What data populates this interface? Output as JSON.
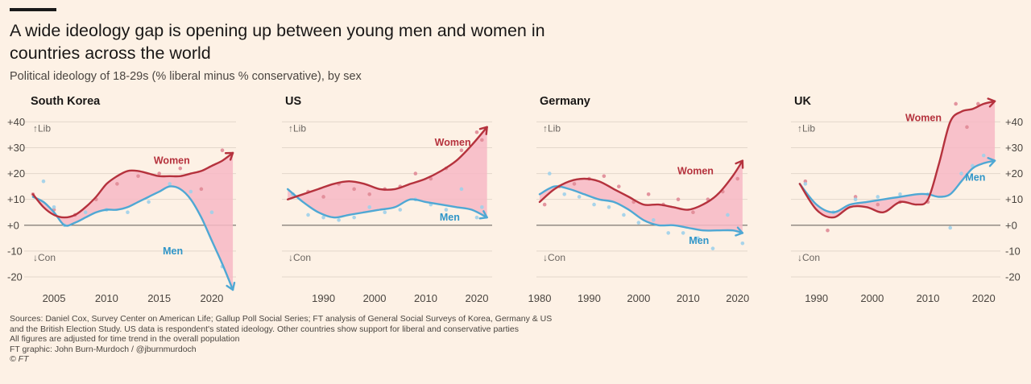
{
  "header": {
    "title": "A wide ideology gap is opening up between young men and women in countries across the world",
    "subtitle": "Political ideology of 18-29s (% liberal minus % conservative), by sex"
  },
  "footer": {
    "sources": "Sources: Daniel Cox, Survey Center on American Life; Gallup Poll Social Series; FT analysis of General Social Surveys of Korea, Germany & US",
    "sources2": "and the British Election Study. US data is respondent's stated ideology. Other countries show support for liberal and conservative parties",
    "note": "All figures are adjusted for time trend in the overall population",
    "credit": "FT graphic: John Burn-Murdoch / @jburnmurdoch",
    "copyright": "© FT"
  },
  "labels": {
    "lib": "↑Lib",
    "con": "↓Con"
  },
  "colors": {
    "women": "#b5323d",
    "men": "#4fa8d4",
    "gap_fill": "#f7b8c6",
    "grid": "#e3d7cb",
    "zero": "#6f6a65",
    "text": "#4a4540"
  },
  "chart_data": [
    {
      "type": "line",
      "title": "South Korea",
      "ylim": [
        -25,
        42
      ],
      "y_ticks": [
        40,
        30,
        20,
        10,
        0,
        -10,
        -20
      ],
      "y_tick_labels": [
        "+40",
        "+30",
        "+20",
        "+10",
        "+0",
        "-10",
        "-20"
      ],
      "y_axis_side": "left",
      "xlim": [
        2002.7,
        2022.3
      ],
      "x_ticks": [
        2005,
        2010,
        2015,
        2020
      ],
      "x_tick_labels": [
        "2005",
        "2010",
        "2015",
        "2020"
      ],
      "series": [
        {
          "name": "Women",
          "x": [
            2003,
            2004,
            2005,
            2006,
            2007,
            2008,
            2009,
            2010,
            2011,
            2012,
            2013,
            2014,
            2015,
            2016,
            2017,
            2018,
            2019,
            2020,
            2021,
            2022
          ],
          "values": [
            12,
            7,
            4,
            3,
            4,
            7,
            11,
            16,
            19,
            21,
            21,
            20,
            19,
            19,
            19,
            20,
            21,
            23,
            25,
            28
          ]
        },
        {
          "name": "Men",
          "x": [
            2003,
            2004,
            2005,
            2006,
            2007,
            2008,
            2009,
            2010,
            2011,
            2012,
            2013,
            2014,
            2015,
            2016,
            2017,
            2018,
            2019,
            2020,
            2021,
            2022
          ],
          "values": [
            11,
            9,
            5,
            0,
            1,
            3,
            5,
            6,
            6,
            7,
            9,
            11,
            13,
            15,
            14,
            10,
            3,
            -6,
            -15,
            -25
          ]
        }
      ],
      "points": {
        "Women": [
          [
            2003,
            12
          ],
          [
            2005,
            6
          ],
          [
            2007,
            4
          ],
          [
            2009,
            10
          ],
          [
            2011,
            16
          ],
          [
            2013,
            19
          ],
          [
            2015,
            20
          ],
          [
            2017,
            22
          ],
          [
            2019,
            14
          ],
          [
            2021,
            29
          ]
        ],
        "Men": [
          [
            2004,
            17
          ],
          [
            2005,
            7
          ],
          [
            2006,
            0
          ],
          [
            2008,
            5
          ],
          [
            2010,
            6
          ],
          [
            2012,
            5
          ],
          [
            2014,
            9
          ],
          [
            2016,
            16
          ],
          [
            2018,
            13
          ],
          [
            2020,
            5
          ],
          [
            2021,
            -16
          ]
        ]
      },
      "series_labels": {
        "Women": [
          2016.2,
          25
        ],
        "Men": [
          2016.3,
          -10
        ]
      }
    },
    {
      "type": "line",
      "title": "US",
      "ylim": [
        -25,
        42
      ],
      "y_ticks": [
        40,
        30,
        20,
        10,
        0,
        -10,
        -20
      ],
      "y_tick_labels": [],
      "y_axis_side": "none",
      "xlim": [
        1982.5,
        2023
      ],
      "x_ticks": [
        1990,
        2000,
        2010,
        2020
      ],
      "x_tick_labels": [
        "1990",
        "2000",
        "2010",
        "2020"
      ],
      "series": [
        {
          "name": "Women",
          "x": [
            1983,
            1986,
            1989,
            1992,
            1995,
            1998,
            2001,
            2004,
            2007,
            2010,
            2013,
            2016,
            2019,
            2022
          ],
          "values": [
            10,
            12,
            14,
            16,
            17,
            16,
            14,
            14,
            16,
            18,
            21,
            25,
            31,
            38
          ]
        },
        {
          "name": "Men",
          "x": [
            1983,
            1986,
            1989,
            1992,
            1995,
            1998,
            2001,
            2004,
            2007,
            2010,
            2013,
            2016,
            2019,
            2022
          ],
          "values": [
            14,
            9,
            5,
            3,
            4,
            5,
            6,
            7,
            10,
            9,
            8,
            7,
            6,
            3
          ]
        }
      ],
      "points": {
        "Women": [
          [
            1984,
            12
          ],
          [
            1987,
            13
          ],
          [
            1990,
            11
          ],
          [
            1993,
            16
          ],
          [
            1996,
            14
          ],
          [
            1999,
            12
          ],
          [
            2002,
            14
          ],
          [
            2005,
            15
          ],
          [
            2008,
            20
          ],
          [
            2011,
            18
          ],
          [
            2014,
            22
          ],
          [
            2017,
            29
          ],
          [
            2020,
            36
          ],
          [
            2021,
            33
          ]
        ],
        "Men": [
          [
            1984,
            12
          ],
          [
            1987,
            4
          ],
          [
            1990,
            3
          ],
          [
            1993,
            2
          ],
          [
            1996,
            3
          ],
          [
            1999,
            7
          ],
          [
            2002,
            5
          ],
          [
            2005,
            6
          ],
          [
            2008,
            10
          ],
          [
            2011,
            8
          ],
          [
            2014,
            6
          ],
          [
            2017,
            14
          ],
          [
            2020,
            3
          ],
          [
            2021,
            7
          ]
        ]
      },
      "series_labels": {
        "Women": [
          2015.3,
          32
        ],
        "Men": [
          2014.7,
          3
        ]
      }
    },
    {
      "type": "line",
      "title": "Germany",
      "ylim": [
        -25,
        42
      ],
      "y_ticks": [
        40,
        30,
        20,
        10,
        0,
        -10,
        -20
      ],
      "y_tick_labels": [],
      "y_axis_side": "none",
      "xlim": [
        1980,
        2022
      ],
      "x_ticks": [
        1980,
        1990,
        2000,
        2010,
        2020
      ],
      "x_tick_labels": [
        "1980",
        "1990",
        "2000",
        "2010",
        "2020"
      ],
      "series": [
        {
          "name": "Women",
          "x": [
            1980,
            1983,
            1986,
            1989,
            1992,
            1995,
            1998,
            2001,
            2004,
            2007,
            2010,
            2013,
            2016,
            2019,
            2021
          ],
          "values": [
            9,
            14,
            17,
            18,
            17,
            14,
            11,
            8,
            8,
            7,
            6,
            8,
            12,
            19,
            25
          ]
        },
        {
          "name": "Men",
          "x": [
            1980,
            1983,
            1986,
            1989,
            1992,
            1995,
            1998,
            2001,
            2004,
            2007,
            2010,
            2013,
            2016,
            2019,
            2021
          ],
          "values": [
            12,
            15,
            14,
            12,
            10,
            9,
            6,
            2,
            0,
            0,
            -1,
            -2,
            -2,
            -2,
            -3
          ]
        }
      ],
      "points": {
        "Women": [
          [
            1981,
            8
          ],
          [
            1984,
            15
          ],
          [
            1987,
            16
          ],
          [
            1990,
            18
          ],
          [
            1993,
            19
          ],
          [
            1996,
            15
          ],
          [
            1999,
            9
          ],
          [
            2002,
            12
          ],
          [
            2005,
            8
          ],
          [
            2008,
            10
          ],
          [
            2011,
            5
          ],
          [
            2014,
            10
          ],
          [
            2017,
            13
          ],
          [
            2020,
            18
          ]
        ],
        "Men": [
          [
            1982,
            20
          ],
          [
            1985,
            12
          ],
          [
            1988,
            11
          ],
          [
            1991,
            8
          ],
          [
            1994,
            7
          ],
          [
            1997,
            4
          ],
          [
            2000,
            1
          ],
          [
            2003,
            2
          ],
          [
            2006,
            -3
          ],
          [
            2009,
            -3
          ],
          [
            2012,
            -5
          ],
          [
            2015,
            -9
          ],
          [
            2018,
            4
          ],
          [
            2021,
            -7
          ]
        ]
      },
      "series_labels": {
        "Women": [
          2011.5,
          21
        ],
        "Men": [
          2012.2,
          -6
        ]
      }
    },
    {
      "type": "line",
      "title": "UK",
      "ylim": [
        -25,
        42
      ],
      "y_ticks": [
        40,
        30,
        20,
        10,
        0,
        -10,
        -20
      ],
      "y_tick_labels": [
        "+40",
        "+30",
        "+20",
        "+10",
        "+0",
        "-10",
        "-20"
      ],
      "y_axis_side": "right",
      "xlim": [
        1986,
        2023
      ],
      "x_ticks": [
        1990,
        2000,
        2010,
        2020
      ],
      "x_tick_labels": [
        "1990",
        "2000",
        "2010",
        "2020"
      ],
      "series": [
        {
          "name": "Women",
          "x": [
            1987,
            1990,
            1993,
            1996,
            1999,
            2002,
            2005,
            2008,
            2010,
            2012,
            2014,
            2016,
            2018,
            2020,
            2022
          ],
          "values": [
            16,
            6,
            3,
            7,
            7,
            5,
            9,
            8,
            10,
            24,
            40,
            44,
            45,
            47,
            48
          ]
        },
        {
          "name": "Men",
          "x": [
            1987,
            1990,
            1993,
            1996,
            1999,
            2002,
            2005,
            2008,
            2010,
            2012,
            2014,
            2016,
            2018,
            2020,
            2022
          ],
          "values": [
            16,
            8,
            5,
            8,
            9,
            10,
            11,
            12,
            12,
            11,
            12,
            17,
            22,
            24,
            25
          ]
        }
      ],
      "points": {
        "Women": [
          [
            1988,
            17
          ],
          [
            1992,
            -2
          ],
          [
            1997,
            11
          ],
          [
            2001,
            8
          ],
          [
            2005,
            9
          ],
          [
            2010,
            9
          ],
          [
            2015,
            47
          ],
          [
            2017,
            38
          ],
          [
            2019,
            47
          ]
        ],
        "Men": [
          [
            1988,
            16
          ],
          [
            1993,
            5
          ],
          [
            1997,
            10
          ],
          [
            2001,
            11
          ],
          [
            2005,
            12
          ],
          [
            2010,
            12
          ],
          [
            2014,
            -1
          ],
          [
            2016,
            20
          ],
          [
            2018,
            23
          ],
          [
            2020,
            27
          ]
        ]
      },
      "series_labels": {
        "Women": [
          2009.2,
          41.5
        ],
        "Men": [
          2018.5,
          18.5
        ]
      }
    }
  ]
}
